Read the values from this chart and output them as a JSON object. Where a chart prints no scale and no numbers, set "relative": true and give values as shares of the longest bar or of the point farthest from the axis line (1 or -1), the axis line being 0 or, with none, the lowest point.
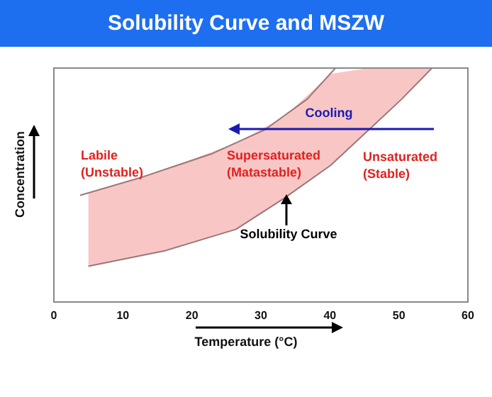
{
  "chart_data": {
    "type": "line",
    "title": "Solubility Curve and MSZW",
    "xlabel": "Temperature (°C)",
    "ylabel": "Concentration",
    "relative": true,
    "xlim": [
      0,
      60
    ],
    "xticks": [
      0,
      10,
      20,
      30,
      40,
      50,
      60
    ],
    "tick_labels": "x",
    "grid": false,
    "legend": false,
    "marker": "none",
    "line_style": "solid",
    "series": [
      {
        "color": "#9a7777",
        "x": [
          3.8,
          12.7,
          23.0,
          30.5,
          36.7,
          40.8
        ],
        "values": [
          0.456,
          0.533,
          0.635,
          0.735,
          0.867,
          1.0
        ]
      },
      {
        "color": "#9a7777",
        "x": [
          5.0,
          16.2,
          26.4,
          33.3,
          40.1,
          45.6,
          50.4,
          54.8
        ],
        "values": [
          0.153,
          0.22,
          0.311,
          0.442,
          0.584,
          0.735,
          0.867,
          1.0
        ],
        "lower": [
          0.153,
          0.22,
          0.311,
          0.442,
          0.584,
          0.735,
          0.867,
          1.0
        ],
        "upper": [
          0.466,
          0.567,
          0.68,
          0.79,
          0.975,
          1.0,
          1.0,
          1.0
        ]
      }
    ],
    "annotations": [
      "Labile\n(Unstable)",
      "Supersaturated\n(Matastable)",
      "Unsaturated\n(Stable)",
      "Cooling",
      {
        "text": "Solubility Curve",
        "x": 34,
        "y": 0.45
      }
    ]
  }
}
